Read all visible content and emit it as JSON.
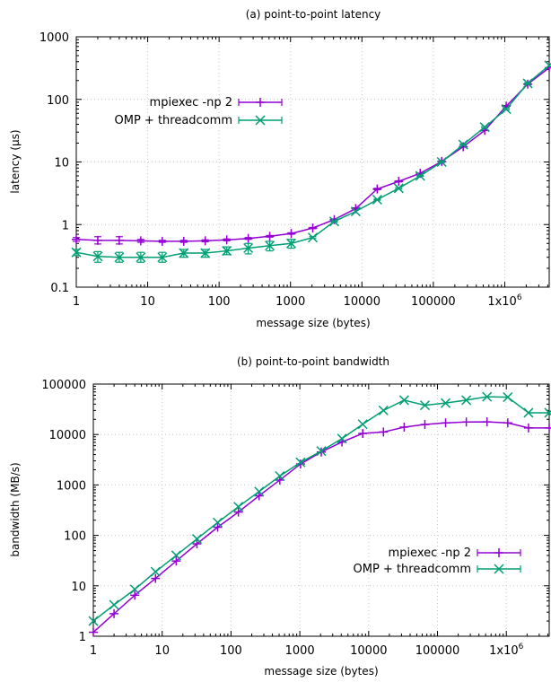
{
  "colors": {
    "mpi": "#9400d3",
    "omp": "#009e73"
  },
  "chart_data": [
    {
      "type": "line",
      "title": "(a) point-to-point latency",
      "xlabel": "message size (bytes)",
      "ylabel": "latency (µs)",
      "xscale": "log",
      "yscale": "log",
      "xlim": [
        1,
        4194304
      ],
      "ylim": [
        0.1,
        1000
      ],
      "grid": true,
      "legend_position": "top-left",
      "x_ticks": [
        {
          "value": 1,
          "label": "1"
        },
        {
          "value": 10,
          "label": "10"
        },
        {
          "value": 100,
          "label": "100"
        },
        {
          "value": 1000,
          "label": "1000"
        },
        {
          "value": 10000,
          "label": "10000"
        },
        {
          "value": 100000,
          "label": "100000"
        },
        {
          "value": 1000000,
          "label": "1x10",
          "sup": "6"
        }
      ],
      "y_ticks": [
        {
          "value": 0.1,
          "label": "0.1"
        },
        {
          "value": 1,
          "label": "1"
        },
        {
          "value": 10,
          "label": "10"
        },
        {
          "value": 100,
          "label": "100"
        },
        {
          "value": 1000,
          "label": "1000"
        }
      ],
      "x": [
        1,
        2,
        4,
        8,
        16,
        32,
        64,
        128,
        256,
        512,
        1024,
        2048,
        4096,
        8192,
        16384,
        32768,
        65536,
        131072,
        262144,
        524288,
        1048576,
        2097152,
        4194304
      ],
      "series": [
        {
          "name": "mpiexec -np 2",
          "color_key": "mpi",
          "marker": "plus",
          "values": [
            0.58,
            0.56,
            0.56,
            0.55,
            0.54,
            0.54,
            0.55,
            0.57,
            0.6,
            0.65,
            0.72,
            0.88,
            1.2,
            1.8,
            3.7,
            4.9,
            6.6,
            10.2,
            17.5,
            32,
            78,
            175,
            320
          ],
          "err_low": [
            0.54,
            0.49,
            0.49,
            0.52,
            0.52,
            0.52,
            0.53,
            0.55,
            0.58,
            0.63,
            0.7,
            0.86,
            1.17,
            1.75,
            3.6,
            4.8,
            6.5,
            10.0,
            17.2,
            31.5,
            76,
            172,
            315
          ],
          "err_high": [
            0.62,
            0.64,
            0.64,
            0.58,
            0.56,
            0.56,
            0.57,
            0.59,
            0.62,
            0.67,
            0.74,
            0.9,
            1.23,
            1.85,
            3.8,
            5.0,
            6.7,
            10.4,
            17.8,
            32.5,
            80,
            178,
            325
          ]
        },
        {
          "name": "OMP + threadcomm",
          "color_key": "omp",
          "marker": "cross",
          "values": [
            0.36,
            0.31,
            0.3,
            0.3,
            0.3,
            0.35,
            0.35,
            0.38,
            0.42,
            0.46,
            0.5,
            0.62,
            1.12,
            1.62,
            2.5,
            3.8,
            6.0,
            10.0,
            19.0,
            36,
            70,
            180,
            350
          ],
          "err_low": [
            0.32,
            0.25,
            0.25,
            0.25,
            0.25,
            0.3,
            0.3,
            0.33,
            0.34,
            0.38,
            0.42,
            0.6,
            1.1,
            1.6,
            2.45,
            3.7,
            5.9,
            9.8,
            18.6,
            35,
            68,
            176,
            345
          ],
          "err_high": [
            0.4,
            0.37,
            0.36,
            0.36,
            0.36,
            0.4,
            0.4,
            0.44,
            0.5,
            0.54,
            0.58,
            0.64,
            1.14,
            1.65,
            2.55,
            3.9,
            6.1,
            10.2,
            19.4,
            37,
            72,
            184,
            355
          ]
        }
      ]
    },
    {
      "type": "line",
      "title": "(b) point-to-point bandwidth",
      "xlabel": "message size (bytes)",
      "ylabel": "bandwidth (MB/s)",
      "xscale": "log",
      "yscale": "log",
      "xlim": [
        1,
        4194304
      ],
      "ylim": [
        1,
        100000
      ],
      "grid": true,
      "legend_position": "bottom-right",
      "x_ticks": [
        {
          "value": 1,
          "label": "1"
        },
        {
          "value": 10,
          "label": "10"
        },
        {
          "value": 100,
          "label": "100"
        },
        {
          "value": 1000,
          "label": "1000"
        },
        {
          "value": 10000,
          "label": "10000"
        },
        {
          "value": 100000,
          "label": "100000"
        },
        {
          "value": 1000000,
          "label": "1x10",
          "sup": "6"
        }
      ],
      "y_ticks": [
        {
          "value": 1,
          "label": "1"
        },
        {
          "value": 10,
          "label": "10"
        },
        {
          "value": 100,
          "label": "100"
        },
        {
          "value": 1000,
          "label": "1000"
        },
        {
          "value": 10000,
          "label": "10000"
        },
        {
          "value": 100000,
          "label": "100000"
        }
      ],
      "x": [
        1,
        2,
        4,
        8,
        16,
        32,
        64,
        128,
        256,
        512,
        1024,
        2048,
        4096,
        8192,
        16384,
        32768,
        65536,
        131072,
        262144,
        524288,
        1048576,
        2097152,
        4194304
      ],
      "series": [
        {
          "name": "mpiexec -np 2",
          "color_key": "mpi",
          "marker": "plus",
          "values": [
            1.2,
            2.8,
            6.5,
            14,
            31,
            68,
            145,
            290,
            610,
            1250,
            2600,
            4500,
            7100,
            10500,
            11200,
            14000,
            15800,
            17000,
            17700,
            17800,
            17000,
            13500,
            13500
          ]
        },
        {
          "name": "OMP + threadcomm",
          "color_key": "omp",
          "marker": "cross",
          "values": [
            2.0,
            4.2,
            8.5,
            19,
            40,
            85,
            180,
            370,
            740,
            1500,
            2800,
            4700,
            8300,
            16000,
            30000,
            48000,
            38000,
            42000,
            48000,
            56000,
            55000,
            27000,
            27000
          ]
        }
      ]
    }
  ]
}
